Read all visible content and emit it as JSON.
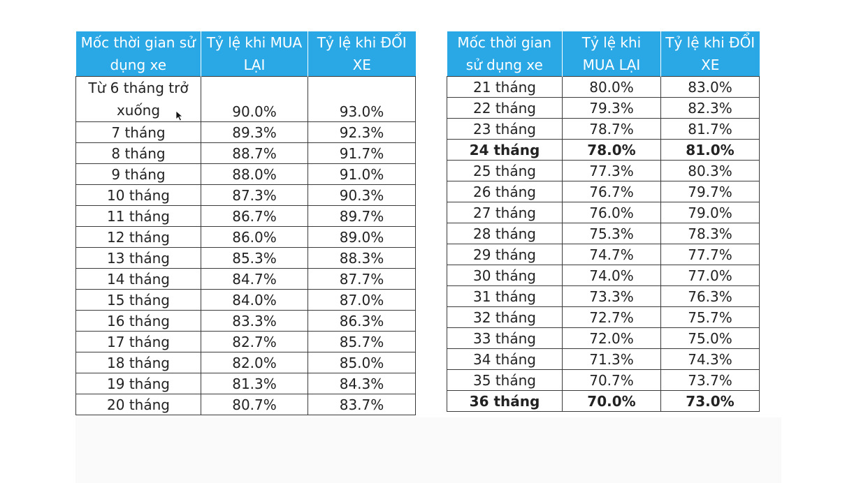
{
  "left_table": {
    "headers": [
      "Mốc thời gian sử dụng xe",
      "Tỷ lệ khi MUA LẠI",
      "Tỷ lệ khi ĐỔI XE"
    ],
    "rows": [
      [
        "Từ 6 tháng trở xuống",
        "90.0%",
        "93.0%"
      ],
      [
        "7 tháng",
        "89.3%",
        "92.3%"
      ],
      [
        "8 tháng",
        "88.7%",
        "91.7%"
      ],
      [
        "9 tháng",
        "88.0%",
        "91.0%"
      ],
      [
        "10 tháng",
        "87.3%",
        "90.3%"
      ],
      [
        "11 tháng",
        "86.7%",
        "89.7%"
      ],
      [
        "12 tháng",
        "86.0%",
        "89.0%"
      ],
      [
        "13 tháng",
        "85.3%",
        "88.3%"
      ],
      [
        "14 tháng",
        "84.7%",
        "87.7%"
      ],
      [
        "15 tháng",
        "84.0%",
        "87.0%"
      ],
      [
        "16 tháng",
        "83.3%",
        "86.3%"
      ],
      [
        "17 tháng",
        "82.7%",
        "85.7%"
      ],
      [
        "18 tháng",
        "82.0%",
        "85.0%"
      ],
      [
        "19 tháng",
        "81.3%",
        "84.3%"
      ],
      [
        "20 tháng",
        "80.7%",
        "83.7%"
      ]
    ]
  },
  "right_table": {
    "headers": [
      "Mốc thời gian sử dụng xe",
      "Tỷ lệ khi MUA LẠI",
      "Tỷ lệ khi ĐỔI XE"
    ],
    "rows": [
      [
        "21 tháng",
        "80.0%",
        "83.0%"
      ],
      [
        "22 tháng",
        "79.3%",
        "82.3%"
      ],
      [
        "23 tháng",
        "78.7%",
        "81.7%"
      ],
      [
        "24 tháng",
        "78.0%",
        "81.0%"
      ],
      [
        "25 tháng",
        "77.3%",
        "80.3%"
      ],
      [
        "26 tháng",
        "76.7%",
        "79.7%"
      ],
      [
        "27 tháng",
        "76.0%",
        "79.0%"
      ],
      [
        "28 tháng",
        "75.3%",
        "78.3%"
      ],
      [
        "29 tháng",
        "74.7%",
        "77.7%"
      ],
      [
        "30 tháng",
        "74.0%",
        "77.0%"
      ],
      [
        "31 tháng",
        "73.3%",
        "76.3%"
      ],
      [
        "32 tháng",
        "72.7%",
        "75.7%"
      ],
      [
        "33 tháng",
        "72.0%",
        "75.0%"
      ],
      [
        "34 tháng",
        "71.3%",
        "74.3%"
      ],
      [
        "35 tháng",
        "70.7%",
        "73.7%"
      ],
      [
        "36 tháng",
        "70.0%",
        "73.0%"
      ]
    ],
    "bold_rows": [
      3,
      15
    ]
  },
  "colors": {
    "header_bg": "#2aa8e6",
    "header_text": "#ffffff",
    "border": "#3a3a3a"
  },
  "cursor_icon": "mouse-pointer-icon"
}
